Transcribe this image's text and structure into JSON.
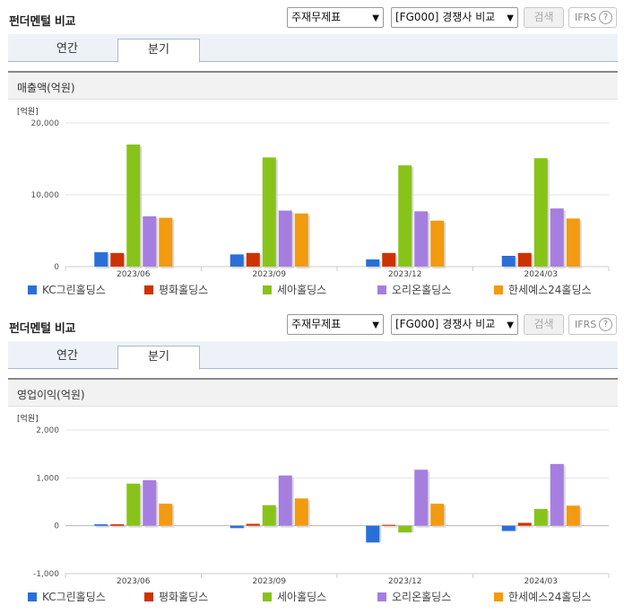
{
  "panels": [
    {
      "title": "펀더멘털 비교",
      "select1": "주재무제표",
      "select2": "[FG000] 경쟁사 비교",
      "search_label": "검색",
      "ifrs_label": "IFRS",
      "help_icon": "?",
      "tabs": [
        "연간",
        "분기"
      ],
      "active_tab": "분기",
      "section_title": "매출액(억원)"
    },
    {
      "title": "펀더멘털 비교",
      "select1": "주재무제표",
      "select2": "[FG000] 경쟁사 비교",
      "search_label": "검색",
      "ifrs_label": "IFRS",
      "help_icon": "?",
      "tabs": [
        "연간",
        "분기"
      ],
      "active_tab": "분기",
      "section_title": "영업이익(억원)"
    }
  ],
  "colors": {
    "KC그린홀딩스": "#2a6fd8",
    "평화홀딩스": "#cc3300",
    "세아홀딩스": "#88c31a",
    "오리온홀딩스": "#a57ee0",
    "한세예스24홀딩스": "#f29a10"
  },
  "chart_data": [
    {
      "type": "bar",
      "unit_label": "[억원]",
      "categories": [
        "2023/06",
        "2023/09",
        "2023/12",
        "2024/03"
      ],
      "ylim": [
        0,
        20000
      ],
      "yticks": [
        "0",
        "10,000",
        "20,000"
      ],
      "grid": true,
      "legend": "bottom",
      "series": [
        {
          "name": "KC그린홀딩스",
          "values": [
            2000,
            1700,
            1000,
            1500
          ]
        },
        {
          "name": "평화홀딩스",
          "values": [
            1900,
            1900,
            1900,
            1900
          ]
        },
        {
          "name": "세아홀딩스",
          "values": [
            17000,
            15200,
            14100,
            15100
          ]
        },
        {
          "name": "오리온홀딩스",
          "values": [
            7000,
            7800,
            7700,
            8100
          ]
        },
        {
          "name": "한세예스24홀딩스",
          "values": [
            6800,
            7400,
            6400,
            6700
          ]
        }
      ]
    },
    {
      "type": "bar",
      "unit_label": "[억원]",
      "categories": [
        "2023/06",
        "2023/09",
        "2023/12",
        "2024/03"
      ],
      "ylim": [
        -1000,
        2000
      ],
      "yticks": [
        "-1,000",
        "0",
        "1,000",
        "2,000"
      ],
      "grid": true,
      "legend": "bottom",
      "series": [
        {
          "name": "KC그린홀딩스",
          "values": [
            30,
            -50,
            -350,
            -110
          ]
        },
        {
          "name": "평화홀딩스",
          "values": [
            30,
            40,
            20,
            60
          ]
        },
        {
          "name": "세아홀딩스",
          "values": [
            880,
            430,
            -140,
            350
          ]
        },
        {
          "name": "오리온홀딩스",
          "values": [
            950,
            1050,
            1170,
            1290
          ]
        },
        {
          "name": "한세예스24홀딩스",
          "values": [
            460,
            570,
            460,
            420
          ]
        }
      ]
    }
  ]
}
